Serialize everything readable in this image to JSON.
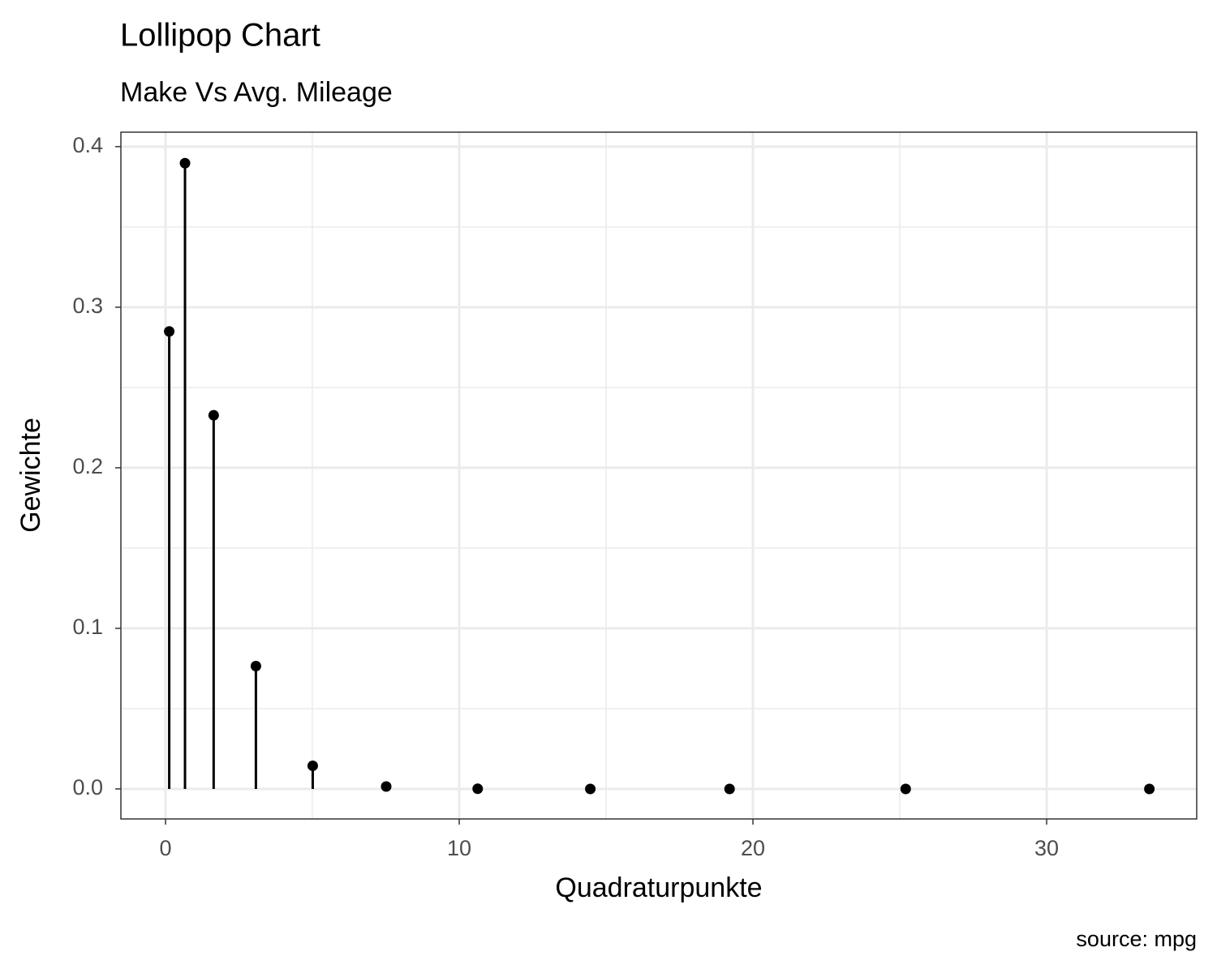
{
  "chart_data": {
    "type": "lollipop",
    "title": "Lollipop Chart",
    "subtitle": "Make Vs Avg. Mileage",
    "x_label": "Quadraturpunkte",
    "y_label": "Gewichte",
    "caption": "source: mpg",
    "x": [
      0.1255,
      0.6629,
      1.6387,
      3.0767,
      5.012,
      7.5136,
      10.6281,
      14.4627,
      19.2044,
      25.2006,
      33.4974
    ],
    "values": [
      0.2849,
      0.3897,
      0.2327,
      0.0765,
      0.0144,
      0.0015,
      0.0001,
      0,
      0,
      0,
      0
    ],
    "color": "#000000",
    "xlim": [
      -1.52,
      35.11
    ],
    "ylim": [
      -0.0187,
      0.409
    ],
    "xticks": [
      0,
      10,
      20,
      30
    ],
    "yticks": [
      {
        "value": 0,
        "label": "0.0"
      },
      {
        "value": 0.1,
        "label": "0.1"
      },
      {
        "value": 0.2,
        "label": "0.2"
      },
      {
        "value": 0.3,
        "label": "0.3"
      },
      {
        "value": 0.4,
        "label": "0.4"
      }
    ],
    "grid": true
  }
}
